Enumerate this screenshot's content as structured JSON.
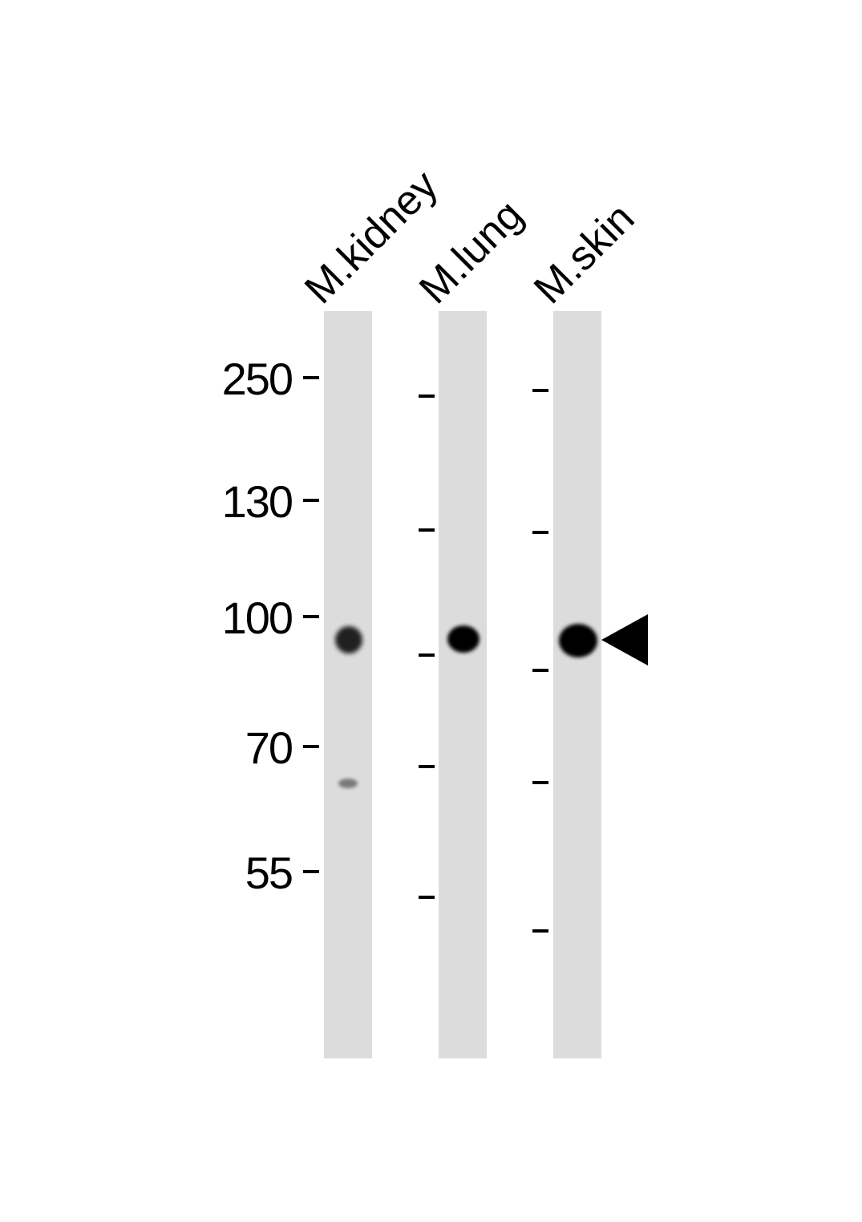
{
  "lanes": [
    {
      "label": "M.kidney"
    },
    {
      "label": "M.lung"
    },
    {
      "label": "M.skin"
    }
  ],
  "markers": [
    "250",
    "130",
    "100",
    "70",
    "55"
  ],
  "band_color": "#000000",
  "lane_color": "#dcdcdc",
  "arrow_icon": "left-pointing-triangle"
}
